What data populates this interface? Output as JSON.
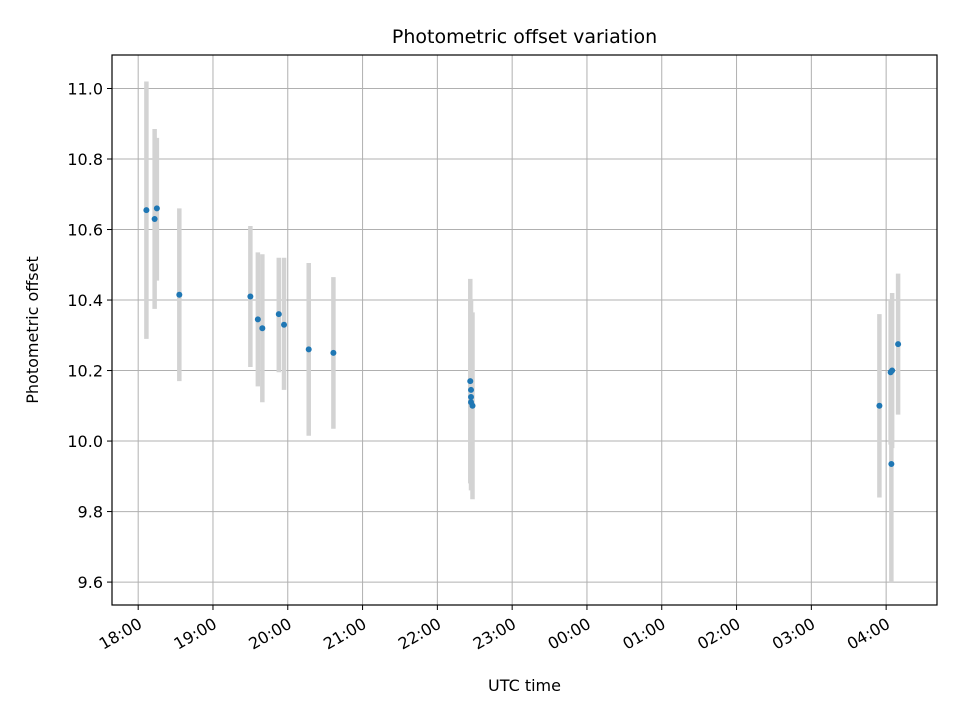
{
  "chart_data": {
    "type": "scatter",
    "title": "Photometric offset variation",
    "xlabel": "UTC time",
    "ylabel": "Photometric offset",
    "grid": true,
    "x_tick_labels": [
      "18:00",
      "19:00",
      "20:00",
      "21:00",
      "22:00",
      "23:00",
      "00:00",
      "01:00",
      "02:00",
      "03:00",
      "04:00"
    ],
    "y_tick_labels": [
      "9.6",
      "9.8",
      "10.0",
      "10.2",
      "10.4",
      "10.6",
      "10.8",
      "11.0"
    ],
    "y_ticks": [
      9.6,
      9.8,
      10.0,
      10.2,
      10.4,
      10.6,
      10.8,
      11.0
    ],
    "x_ticks_hours": [
      18,
      19,
      20,
      21,
      22,
      23,
      24,
      25,
      26,
      27,
      28
    ],
    "xlim_hours": [
      17.65,
      28.68
    ],
    "ylim": [
      9.535,
      11.095
    ],
    "colors": {
      "points": "#1f77b4",
      "error_bars": "#d3d3d3"
    },
    "points": [
      {
        "time": "18:06",
        "hours": 18.11,
        "y": 10.655,
        "ylow": 10.29,
        "yhigh": 11.02
      },
      {
        "time": "18:13",
        "hours": 18.22,
        "y": 10.63,
        "ylow": 10.375,
        "yhigh": 10.885
      },
      {
        "time": "18:15",
        "hours": 18.25,
        "y": 10.66,
        "ylow": 10.455,
        "yhigh": 10.86
      },
      {
        "time": "18:33",
        "hours": 18.55,
        "y": 10.415,
        "ylow": 10.17,
        "yhigh": 10.66
      },
      {
        "time": "19:30",
        "hours": 19.5,
        "y": 10.41,
        "ylow": 10.21,
        "yhigh": 10.61
      },
      {
        "time": "19:36",
        "hours": 19.6,
        "y": 10.345,
        "ylow": 10.155,
        "yhigh": 10.535
      },
      {
        "time": "19:40",
        "hours": 19.66,
        "y": 10.32,
        "ylow": 10.11,
        "yhigh": 10.53
      },
      {
        "time": "19:53",
        "hours": 19.88,
        "y": 10.36,
        "ylow": 10.195,
        "yhigh": 10.52
      },
      {
        "time": "19:57",
        "hours": 19.95,
        "y": 10.33,
        "ylow": 10.145,
        "yhigh": 10.52
      },
      {
        "time": "20:17",
        "hours": 20.28,
        "y": 10.26,
        "ylow": 10.015,
        "yhigh": 10.505
      },
      {
        "time": "20:37",
        "hours": 20.61,
        "y": 10.25,
        "ylow": 10.035,
        "yhigh": 10.465
      },
      {
        "time": "22:26",
        "hours": 22.44,
        "y": 10.17,
        "ylow": 9.88,
        "yhigh": 10.46
      },
      {
        "time": "22:27",
        "hours": 22.45,
        "y": 10.145,
        "ylow": 9.89,
        "yhigh": 10.4
      },
      {
        "time": "22:27",
        "hours": 22.45,
        "y": 10.125,
        "ylow": 9.89,
        "yhigh": 10.36
      },
      {
        "time": "22:27",
        "hours": 22.45,
        "y": 10.11,
        "ylow": 9.86,
        "yhigh": 10.36
      },
      {
        "time": "22:28",
        "hours": 22.47,
        "y": 10.1,
        "ylow": 9.835,
        "yhigh": 10.365
      },
      {
        "time": "03:55",
        "hours": 27.91,
        "y": 10.1,
        "ylow": 9.84,
        "yhigh": 10.36
      },
      {
        "time": "04:04",
        "hours": 28.06,
        "y": 10.195,
        "ylow": 9.99,
        "yhigh": 10.4
      },
      {
        "time": "04:04",
        "hours": 28.07,
        "y": 9.935,
        "ylow": 9.6,
        "yhigh": 10.27
      },
      {
        "time": "04:05",
        "hours": 28.08,
        "y": 10.2,
        "ylow": 9.98,
        "yhigh": 10.42
      },
      {
        "time": "04:10",
        "hours": 28.16,
        "y": 10.275,
        "ylow": 10.075,
        "yhigh": 10.475
      }
    ]
  }
}
